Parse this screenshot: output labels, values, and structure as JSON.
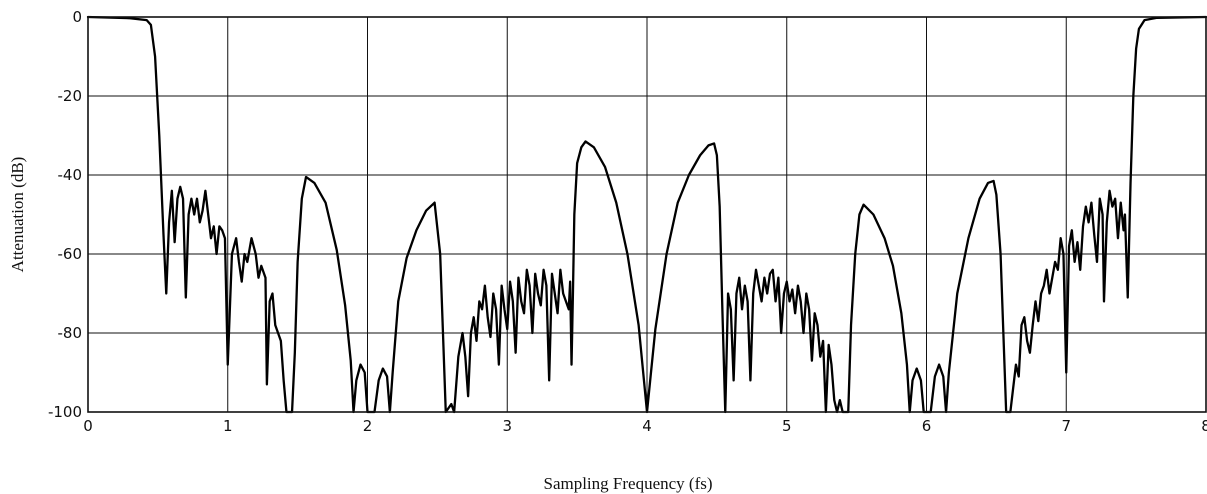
{
  "chart_data": {
    "type": "line",
    "title": "",
    "xlabel": "Sampling Frequency (fs)",
    "ylabel": "Attenuation (dB)",
    "xlim": [
      0,
      8
    ],
    "ylim": [
      -100,
      0
    ],
    "x_ticks": [
      "0",
      "1",
      "2",
      "3",
      "4",
      "5",
      "6",
      "7",
      "8"
    ],
    "y_ticks": [
      "0",
      "-20",
      "-40",
      "-60",
      "-80",
      "-100"
    ],
    "grid": true,
    "series": [
      {
        "color": "#000000",
        "points": [
          [
            0.0,
            0.0
          ],
          [
            0.3,
            -0.3
          ],
          [
            0.42,
            -0.8
          ],
          [
            0.45,
            -2
          ],
          [
            0.48,
            -10
          ],
          [
            0.51,
            -30
          ],
          [
            0.54,
            -55
          ],
          [
            0.56,
            -70
          ],
          [
            0.58,
            -52
          ],
          [
            0.6,
            -44
          ],
          [
            0.62,
            -57
          ],
          [
            0.64,
            -46
          ],
          [
            0.66,
            -43
          ],
          [
            0.68,
            -46
          ],
          [
            0.7,
            -71
          ],
          [
            0.72,
            -50
          ],
          [
            0.74,
            -46
          ],
          [
            0.76,
            -50
          ],
          [
            0.78,
            -46
          ],
          [
            0.8,
            -52
          ],
          [
            0.82,
            -49
          ],
          [
            0.84,
            -44
          ],
          [
            0.86,
            -50
          ],
          [
            0.88,
            -56
          ],
          [
            0.9,
            -53
          ],
          [
            0.92,
            -60
          ],
          [
            0.94,
            -53
          ],
          [
            0.96,
            -54
          ],
          [
            0.98,
            -56
          ],
          [
            1.0,
            -88
          ],
          [
            1.03,
            -60
          ],
          [
            1.06,
            -56
          ],
          [
            1.08,
            -62
          ],
          [
            1.1,
            -67
          ],
          [
            1.12,
            -60
          ],
          [
            1.14,
            -62
          ],
          [
            1.17,
            -56
          ],
          [
            1.2,
            -60
          ],
          [
            1.22,
            -66
          ],
          [
            1.24,
            -63
          ],
          [
            1.27,
            -66
          ],
          [
            1.28,
            -93
          ],
          [
            1.3,
            -72
          ],
          [
            1.32,
            -70
          ],
          [
            1.34,
            -78
          ],
          [
            1.36,
            -80
          ],
          [
            1.38,
            -82
          ],
          [
            1.4,
            -92
          ],
          [
            1.42,
            -100
          ],
          [
            1.46,
            -100
          ],
          [
            1.48,
            -85
          ],
          [
            1.5,
            -62
          ],
          [
            1.53,
            -46
          ],
          [
            1.56,
            -40.5
          ],
          [
            1.62,
            -42
          ],
          [
            1.7,
            -47
          ],
          [
            1.78,
            -59
          ],
          [
            1.84,
            -73
          ],
          [
            1.88,
            -87
          ],
          [
            1.9,
            -100
          ],
          [
            1.92,
            -92
          ],
          [
            1.95,
            -88
          ],
          [
            1.98,
            -90
          ],
          [
            2.0,
            -100
          ],
          [
            2.05,
            -100
          ],
          [
            2.08,
            -92
          ],
          [
            2.11,
            -89
          ],
          [
            2.14,
            -91
          ],
          [
            2.16,
            -100
          ],
          [
            2.18,
            -90
          ],
          [
            2.22,
            -72
          ],
          [
            2.28,
            -61
          ],
          [
            2.35,
            -54
          ],
          [
            2.42,
            -49
          ],
          [
            2.48,
            -47
          ],
          [
            2.52,
            -60
          ],
          [
            2.54,
            -80
          ],
          [
            2.56,
            -100
          ],
          [
            2.6,
            -98
          ],
          [
            2.62,
            -100
          ],
          [
            2.65,
            -86
          ],
          [
            2.68,
            -80
          ],
          [
            2.7,
            -86
          ],
          [
            2.72,
            -96
          ],
          [
            2.74,
            -80
          ],
          [
            2.76,
            -76
          ],
          [
            2.78,
            -82
          ],
          [
            2.8,
            -72
          ],
          [
            2.82,
            -74
          ],
          [
            2.84,
            -68
          ],
          [
            2.86,
            -76
          ],
          [
            2.88,
            -81
          ],
          [
            2.9,
            -70
          ],
          [
            2.92,
            -74
          ],
          [
            2.94,
            -88
          ],
          [
            2.96,
            -68
          ],
          [
            2.98,
            -74
          ],
          [
            3.0,
            -79
          ],
          [
            3.02,
            -67
          ],
          [
            3.04,
            -72
          ],
          [
            3.06,
            -85
          ],
          [
            3.08,
            -66
          ],
          [
            3.1,
            -72
          ],
          [
            3.12,
            -75
          ],
          [
            3.14,
            -64
          ],
          [
            3.16,
            -68
          ],
          [
            3.18,
            -80
          ],
          [
            3.2,
            -65
          ],
          [
            3.22,
            -70
          ],
          [
            3.24,
            -73
          ],
          [
            3.26,
            -64
          ],
          [
            3.28,
            -68
          ],
          [
            3.3,
            -92
          ],
          [
            3.32,
            -65
          ],
          [
            3.34,
            -70
          ],
          [
            3.36,
            -75
          ],
          [
            3.38,
            -64
          ],
          [
            3.4,
            -70
          ],
          [
            3.42,
            -72
          ],
          [
            3.44,
            -74
          ],
          [
            3.45,
            -67
          ],
          [
            3.46,
            -88
          ],
          [
            3.47,
            -70
          ],
          [
            3.48,
            -50
          ],
          [
            3.5,
            -37
          ],
          [
            3.53,
            -33
          ],
          [
            3.56,
            -31.5
          ],
          [
            3.62,
            -33
          ],
          [
            3.7,
            -38
          ],
          [
            3.78,
            -47
          ],
          [
            3.86,
            -60
          ],
          [
            3.94,
            -78
          ],
          [
            4.0,
            -100
          ],
          [
            4.06,
            -79
          ],
          [
            4.14,
            -60
          ],
          [
            4.22,
            -47
          ],
          [
            4.3,
            -40
          ],
          [
            4.38,
            -35
          ],
          [
            4.44,
            -32.5
          ],
          [
            4.48,
            -32
          ],
          [
            4.5,
            -35
          ],
          [
            4.52,
            -48
          ],
          [
            4.54,
            -75
          ],
          [
            4.56,
            -100
          ],
          [
            4.58,
            -70
          ],
          [
            4.6,
            -74
          ],
          [
            4.62,
            -92
          ],
          [
            4.64,
            -70
          ],
          [
            4.66,
            -66
          ],
          [
            4.68,
            -74
          ],
          [
            4.7,
            -68
          ],
          [
            4.72,
            -72
          ],
          [
            4.74,
            -92
          ],
          [
            4.76,
            -70
          ],
          [
            4.78,
            -64
          ],
          [
            4.8,
            -68
          ],
          [
            4.82,
            -72
          ],
          [
            4.84,
            -66
          ],
          [
            4.86,
            -70
          ],
          [
            4.88,
            -65
          ],
          [
            4.9,
            -64
          ],
          [
            4.92,
            -72
          ],
          [
            4.94,
            -66
          ],
          [
            4.96,
            -80
          ],
          [
            4.98,
            -70
          ],
          [
            5.0,
            -67
          ],
          [
            5.02,
            -72
          ],
          [
            5.04,
            -69
          ],
          [
            5.06,
            -75
          ],
          [
            5.08,
            -68
          ],
          [
            5.1,
            -72
          ],
          [
            5.12,
            -80
          ],
          [
            5.14,
            -70
          ],
          [
            5.16,
            -74
          ],
          [
            5.18,
            -87
          ],
          [
            5.2,
            -75
          ],
          [
            5.22,
            -78
          ],
          [
            5.24,
            -86
          ],
          [
            5.26,
            -82
          ],
          [
            5.28,
            -100
          ],
          [
            5.3,
            -83
          ],
          [
            5.32,
            -88
          ],
          [
            5.34,
            -97
          ],
          [
            5.36,
            -100
          ],
          [
            5.38,
            -97
          ],
          [
            5.4,
            -100
          ],
          [
            5.44,
            -100
          ],
          [
            5.46,
            -78
          ],
          [
            5.49,
            -60
          ],
          [
            5.52,
            -50
          ],
          [
            5.55,
            -47.5
          ],
          [
            5.62,
            -50
          ],
          [
            5.7,
            -56
          ],
          [
            5.76,
            -63
          ],
          [
            5.82,
            -75
          ],
          [
            5.86,
            -88
          ],
          [
            5.88,
            -100
          ],
          [
            5.9,
            -92
          ],
          [
            5.93,
            -89
          ],
          [
            5.96,
            -92
          ],
          [
            5.98,
            -100
          ],
          [
            6.03,
            -100
          ],
          [
            6.06,
            -91
          ],
          [
            6.09,
            -88
          ],
          [
            6.12,
            -91
          ],
          [
            6.14,
            -100
          ],
          [
            6.16,
            -90
          ],
          [
            6.22,
            -70
          ],
          [
            6.3,
            -56
          ],
          [
            6.38,
            -46
          ],
          [
            6.44,
            -42
          ],
          [
            6.48,
            -41.5
          ],
          [
            6.5,
            -45
          ],
          [
            6.53,
            -60
          ],
          [
            6.55,
            -80
          ],
          [
            6.57,
            -100
          ],
          [
            6.6,
            -100
          ],
          [
            6.62,
            -94
          ],
          [
            6.64,
            -88
          ],
          [
            6.66,
            -91
          ],
          [
            6.68,
            -78
          ],
          [
            6.7,
            -76
          ],
          [
            6.72,
            -82
          ],
          [
            6.74,
            -85
          ],
          [
            6.76,
            -78
          ],
          [
            6.78,
            -72
          ],
          [
            6.8,
            -77
          ],
          [
            6.82,
            -70
          ],
          [
            6.84,
            -68
          ],
          [
            6.86,
            -64
          ],
          [
            6.88,
            -70
          ],
          [
            6.9,
            -66
          ],
          [
            6.92,
            -62
          ],
          [
            6.94,
            -64
          ],
          [
            6.96,
            -56
          ],
          [
            6.98,
            -60
          ],
          [
            7.0,
            -90
          ],
          [
            7.02,
            -58
          ],
          [
            7.04,
            -54
          ],
          [
            7.06,
            -62
          ],
          [
            7.08,
            -57
          ],
          [
            7.1,
            -64
          ],
          [
            7.12,
            -53
          ],
          [
            7.14,
            -48
          ],
          [
            7.16,
            -52
          ],
          [
            7.18,
            -47
          ],
          [
            7.2,
            -55
          ],
          [
            7.22,
            -62
          ],
          [
            7.24,
            -46
          ],
          [
            7.26,
            -50
          ],
          [
            7.27,
            -72
          ],
          [
            7.29,
            -52
          ],
          [
            7.31,
            -44
          ],
          [
            7.33,
            -48
          ],
          [
            7.35,
            -46
          ],
          [
            7.37,
            -56
          ],
          [
            7.39,
            -47
          ],
          [
            7.41,
            -54
          ],
          [
            7.42,
            -50
          ],
          [
            7.44,
            -71
          ],
          [
            7.46,
            -42
          ],
          [
            7.48,
            -20
          ],
          [
            7.5,
            -8
          ],
          [
            7.52,
            -3
          ],
          [
            7.56,
            -0.8
          ],
          [
            7.65,
            -0.2
          ],
          [
            8.0,
            0.0
          ]
        ]
      }
    ]
  }
}
